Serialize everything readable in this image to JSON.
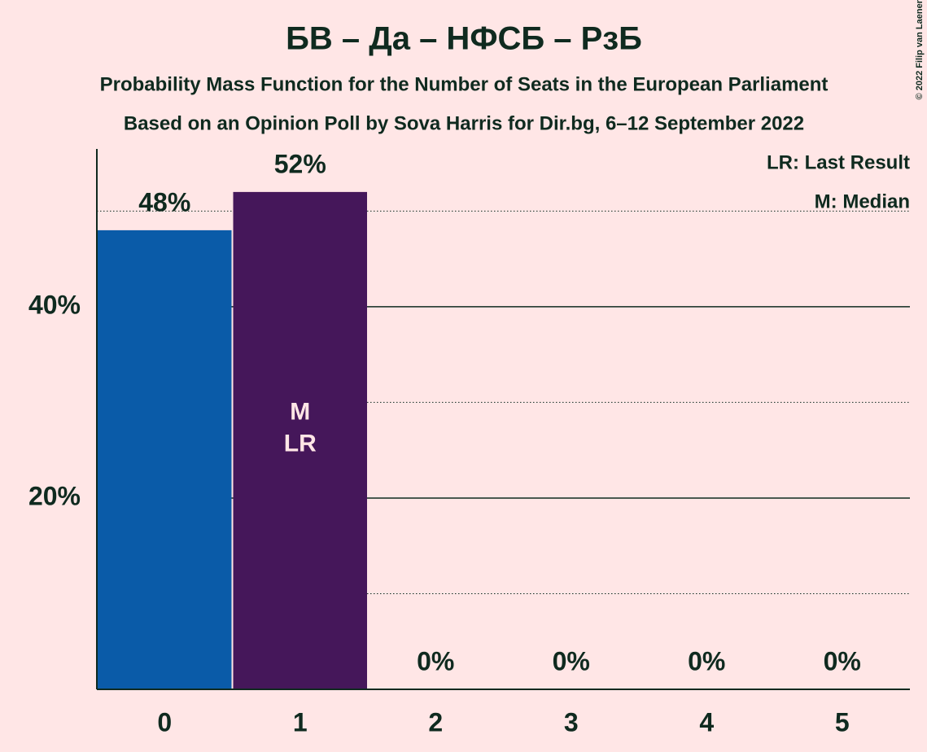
{
  "chart_data": {
    "type": "bar",
    "title": "БВ – Да – НФСБ – РзБ",
    "subtitle": "Probability Mass Function for the Number of Seats in the European Parliament",
    "subtitle2": "Based on an Opinion Poll by Sova Harris for Dir.bg, 6–12 September 2022",
    "copyright": "© 2022 Filip van Laenen",
    "categories": [
      "0",
      "1",
      "2",
      "3",
      "4",
      "5"
    ],
    "values": [
      48,
      52,
      0,
      0,
      0,
      0
    ],
    "value_labels": [
      "48%",
      "52%",
      "0%",
      "0%",
      "0%",
      "0%"
    ],
    "colors": [
      "#0a5ba8",
      "#45175a",
      "#45175a",
      "#45175a",
      "#45175a",
      "#45175a"
    ],
    "ylim": [
      0,
      56.5
    ],
    "yticks": [
      {
        "value": 20,
        "label": "20%"
      },
      {
        "value": 40,
        "label": "40%"
      }
    ],
    "minor_gridlines": [
      10,
      30,
      50
    ],
    "grid": true,
    "median": 1,
    "median_label": "M",
    "last_result": 1,
    "last_result_label": "LR",
    "legend": [
      "LR: Last Result",
      "M: Median"
    ],
    "legend_position": "top-right"
  }
}
